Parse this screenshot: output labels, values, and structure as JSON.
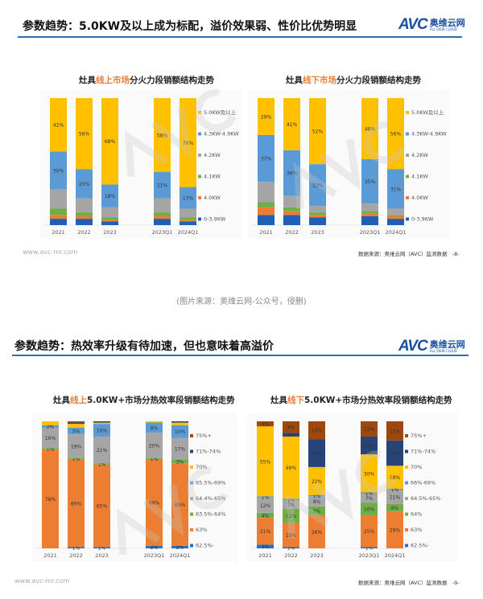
{
  "slides": [
    {
      "title": "参数趋势：5.0KW及以上成为标配，溢价效果弱、性价比优势明显",
      "logo": {
        "latin": "AVC",
        "cn": "奥维云网",
        "en": "ALL VIEW CLOUD"
      },
      "footer_url": "www.avc-mr.com",
      "source": "数据来源：奥维云网（AVC）监测数据",
      "page": "-8-"
    },
    {
      "title": "参数趋势：热效率升级有待加速，但也意味着高溢价",
      "logo": {
        "latin": "AVC",
        "cn": "奥维云网",
        "en": "ALL VIEW CLOUD"
      },
      "footer_url": "www.avc-mr.com",
      "source": "数据来源：奥维云网（AVC）监测数据",
      "page": "-9-"
    }
  ],
  "caption": "(图片来源：奥维云网-公众号，侵删)",
  "watermark": "AVC 奥维云网",
  "chart_data": [
    {
      "type": "bar",
      "stacked": true,
      "percent": true,
      "title_pre": "灶具",
      "title_hl": "线上市场",
      "title_post": "分火力段销额结构走势",
      "categories": [
        "2021",
        "2022",
        "2023",
        "2023Q1",
        "2024Q1"
      ],
      "legend": "right",
      "series": [
        {
          "name": "0-3.9KW",
          "color": "#1f5fb8",
          "values": [
            5,
            5,
            3,
            5,
            3
          ],
          "labeled": false
        },
        {
          "name": "4.0KW",
          "color": "#ed7d31",
          "values": [
            3,
            2,
            1,
            2,
            1
          ],
          "labeled": false
        },
        {
          "name": "4.1KW",
          "color": "#70ad47",
          "values": [
            5,
            3,
            2,
            3,
            2
          ],
          "labeled": false
        },
        {
          "name": "4.2KW",
          "color": "#a5a5a5",
          "values": [
            15,
            11,
            8,
            11,
            7
          ],
          "labeled": false
        },
        {
          "name": "4.3KW-4.9KW",
          "color": "#5b9bd5",
          "values": [
            30,
            23,
            18,
            21,
            17
          ],
          "labeled": true
        },
        {
          "name": "5.0KW及以上",
          "color": "#ffc000",
          "values": [
            42,
            56,
            68,
            58,
            70
          ],
          "labeled": true
        }
      ]
    },
    {
      "type": "bar",
      "stacked": true,
      "percent": true,
      "title_pre": "灶具",
      "title_hl": "线下市场",
      "title_post": "分火力段销额结构走势",
      "categories": [
        "2021",
        "2022",
        "2023",
        "2023Q1",
        "2024Q1"
      ],
      "legend": "right",
      "series": [
        {
          "name": "0-3.9KW",
          "color": "#1f5fb8",
          "values": [
            8,
            8,
            6,
            7,
            5
          ],
          "labeled": false
        },
        {
          "name": "4.0KW",
          "color": "#ed7d31",
          "values": [
            6,
            3,
            2,
            2,
            2
          ],
          "labeled": false
        },
        {
          "name": "4.1KW",
          "color": "#70ad47",
          "values": [
            4,
            3,
            2,
            2,
            1
          ],
          "labeled": false
        },
        {
          "name": "4.2KW",
          "color": "#a5a5a5",
          "values": [
            16,
            9,
            5,
            6,
            5
          ],
          "labeled": false
        },
        {
          "name": "4.3KW-4.9KW",
          "color": "#5b9bd5",
          "values": [
            37,
            36,
            33,
            35,
            31
          ],
          "labeled": true
        },
        {
          "name": "5.0KW及以上",
          "color": "#ffc000",
          "values": [
            29,
            41,
            52,
            48,
            56
          ],
          "labeled": true
        }
      ]
    },
    {
      "type": "bar",
      "stacked": true,
      "percent": true,
      "title_pre": "灶具",
      "title_hl": "线上",
      "title_post": "5.0KW+市场分热效率段销额结构走势",
      "categories": [
        "2021",
        "2022",
        "2023",
        "2023Q1",
        "2024Q1"
      ],
      "legend": "right",
      "series": [
        {
          "name": "62.5%-",
          "color": "#2e6fc4",
          "values": [
            0,
            1,
            1,
            2,
            2
          ],
          "labeled": true
        },
        {
          "name": "63%",
          "color": "#ed7d31",
          "values": [
            78,
            69,
            65,
            68,
            65
          ],
          "labeled": true
        },
        {
          "name": "63.5%-64%",
          "color": "#70ad47",
          "values": [
            1,
            1,
            1,
            1,
            3
          ],
          "labeled": true
        },
        {
          "name": "64.4%-65%",
          "color": "#a5a5a5",
          "values": [
            16,
            19,
            21,
            20,
            17
          ],
          "labeled": true
        },
        {
          "name": "65.5%-69%",
          "color": "#5b9bd5",
          "values": [
            2,
            5,
            10,
            8,
            10
          ],
          "labeled": true
        },
        {
          "name": "70%",
          "color": "#ffc000",
          "values": [
            3,
            3,
            1,
            1,
            2
          ],
          "labeled": false
        },
        {
          "name": "71%-74%",
          "color": "#264478",
          "values": [
            0,
            1,
            1,
            0,
            1
          ],
          "labeled": false
        },
        {
          "name": "75%+",
          "color": "#9e480e",
          "values": [
            0,
            1,
            0,
            0,
            0
          ],
          "labeled": false
        }
      ]
    },
    {
      "type": "bar",
      "stacked": true,
      "percent": true,
      "title_pre": "灶具",
      "title_hl": "线下",
      "title_post": "5.0KW+市场分热效率段销额结构走势",
      "categories": [
        "2021",
        "2022",
        "2023",
        "2023Q1",
        "2024Q1"
      ],
      "legend": "right",
      "series": [
        {
          "name": "62.5%-",
          "color": "#2e6fc4",
          "values": [
            3,
            1,
            0,
            1,
            0
          ],
          "labeled": true
        },
        {
          "name": "63%",
          "color": "#ed7d31",
          "values": [
            21,
            19,
            26,
            25,
            29
          ],
          "labeled": true
        },
        {
          "name": "64%",
          "color": "#70ad47",
          "values": [
            4,
            11,
            7,
            10,
            6
          ],
          "labeled": true
        },
        {
          "name": "64.5%-65%",
          "color": "#a5a5a5",
          "values": [
            12,
            7,
            8,
            7,
            11
          ],
          "labeled": true
        },
        {
          "name": "66%-69%",
          "color": "#5b9bd5",
          "values": [
            1,
            1,
            1,
            1,
            1
          ],
          "labeled": true
        },
        {
          "name": "70%",
          "color": "#ffc000",
          "values": [
            55,
            49,
            22,
            30,
            18
          ],
          "labeled": true
        },
        {
          "name": "71%-74%",
          "color": "#264478",
          "values": [
            0,
            3,
            22,
            14,
            20
          ],
          "labeled": true
        },
        {
          "name": "75%+",
          "color": "#9e480e",
          "values": [
            4,
            9,
            14,
            12,
            15
          ],
          "labeled": true
        }
      ]
    }
  ]
}
